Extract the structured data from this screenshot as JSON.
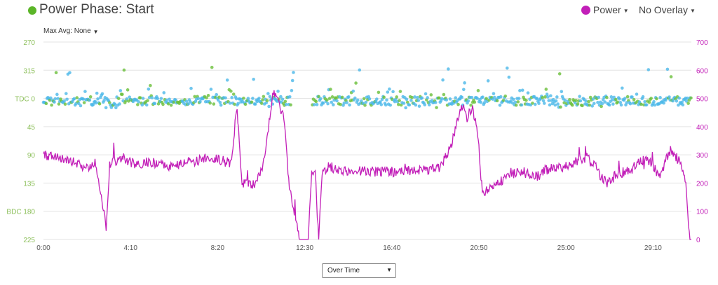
{
  "header": {
    "title": "Power Phase: Start",
    "title_dot_color": "#5bb528",
    "metric_label": "Power",
    "metric_color": "#c21fb8",
    "overlay_label": "No Overlay"
  },
  "controls": {
    "max_avg_label": "Max Avg: None",
    "x_mode_label": "Over Time"
  },
  "chart_data": {
    "type": "scatter+line",
    "x_range_seconds": [
      0,
      1860
    ],
    "x_ticks": [
      "0:00",
      "4:10",
      "8:20",
      "12:30",
      "16:40",
      "20:50",
      "25:00",
      "29:10"
    ],
    "left_axis": {
      "ticks": [
        "270",
        "315",
        "TDC 0",
        "45",
        "90",
        "135",
        "BDC 180",
        "225"
      ],
      "range_degrees": [
        270,
        225
      ],
      "color": "#8cbf5a"
    },
    "right_axis": {
      "ticks": [
        "700",
        "600",
        "500",
        "400",
        "300",
        "200",
        "100",
        "0"
      ],
      "range_watts": [
        0,
        700
      ],
      "color": "#c21fb8"
    },
    "power_series": {
      "color": "#c21fb8",
      "t": [
        0,
        30,
        60,
        90,
        120,
        150,
        180,
        190,
        200,
        230,
        260,
        300,
        360,
        420,
        480,
        540,
        555,
        570,
        600,
        615,
        630,
        660,
        675,
        690,
        705,
        720,
        735,
        760,
        770,
        780,
        790,
        800,
        820,
        860,
        900,
        960,
        1020,
        1080,
        1140,
        1170,
        1200,
        1215,
        1230,
        1245,
        1260,
        1280,
        1300,
        1340,
        1380,
        1400,
        1420,
        1440,
        1500,
        1560,
        1590,
        1600,
        1620,
        1650,
        1680,
        1710,
        1740,
        1770,
        1800,
        1830,
        1845,
        1855
      ],
      "watts": [
        300,
        290,
        280,
        275,
        255,
        270,
        40,
        260,
        275,
        290,
        265,
        275,
        260,
        275,
        290,
        270,
        480,
        200,
        190,
        210,
        260,
        520,
        480,
        440,
        200,
        100,
        0,
        0,
        250,
        230,
        0,
        240,
        260,
        240,
        245,
        240,
        240,
        245,
        255,
        330,
        480,
        430,
        470,
        400,
        160,
        180,
        195,
        230,
        240,
        220,
        225,
        245,
        260,
        290,
        250,
        220,
        200,
        235,
        240,
        275,
        280,
        220,
        320,
        270,
        200,
        0
      ]
    },
    "phase_start_series": {
      "green_color": "#6abf3a",
      "blue_color": "#4bb8e8",
      "center_degrees": 0,
      "typical_spread_degrees": [
        -10,
        15
      ],
      "outlier_range_degrees": [
        300,
        45
      ]
    }
  }
}
